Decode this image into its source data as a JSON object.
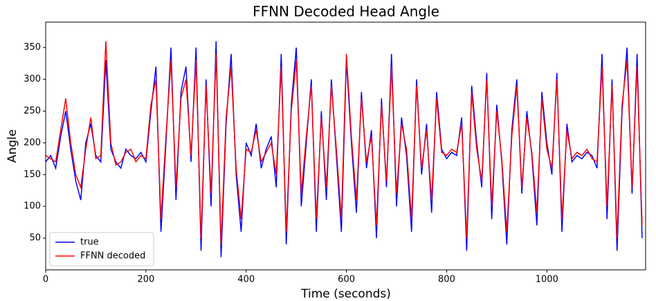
{
  "chart_data": {
    "type": "line",
    "title": "FFNN Decoded Head Angle",
    "x_label": "Time (seconds)",
    "y_label": "Angle",
    "x": [
      0,
      10,
      20,
      30,
      40,
      50,
      60,
      70,
      80,
      90,
      100,
      110,
      120,
      130,
      140,
      150,
      160,
      170,
      180,
      190,
      200,
      210,
      220,
      230,
      240,
      250,
      260,
      270,
      280,
      290,
      300,
      310,
      320,
      330,
      340,
      350,
      360,
      370,
      380,
      390,
      400,
      410,
      420,
      430,
      440,
      450,
      460,
      470,
      480,
      490,
      500,
      510,
      520,
      530,
      540,
      550,
      560,
      570,
      580,
      590,
      600,
      610,
      620,
      630,
      640,
      650,
      660,
      670,
      680,
      690,
      700,
      710,
      720,
      730,
      740,
      750,
      760,
      770,
      780,
      790,
      800,
      810,
      820,
      830,
      840,
      850,
      860,
      870,
      880,
      890,
      900,
      910,
      920,
      930,
      940,
      950,
      960,
      970,
      980,
      990,
      1000,
      1010,
      1020,
      1030,
      1040,
      1050,
      1060,
      1070,
      1080,
      1090,
      1100,
      1110,
      1120,
      1130,
      1140,
      1150,
      1160,
      1170,
      1180,
      1190
    ],
    "series": [
      {
        "name": "true",
        "color": "#0000ff",
        "values": [
          170,
          180,
          160,
          210,
          250,
          190,
          140,
          110,
          200,
          230,
          180,
          170,
          330,
          190,
          170,
          160,
          190,
          180,
          175,
          185,
          170,
          250,
          320,
          60,
          200,
          350,
          110,
          280,
          320,
          170,
          350,
          30,
          300,
          100,
          360,
          20,
          230,
          340,
          150,
          60,
          200,
          180,
          230,
          160,
          190,
          210,
          130,
          340,
          40,
          260,
          350,
          100,
          200,
          300,
          60,
          250,
          110,
          300,
          180,
          60,
          330,
          200,
          90,
          280,
          160,
          220,
          50,
          270,
          130,
          340,
          100,
          240,
          180,
          60,
          300,
          150,
          230,
          90,
          280,
          190,
          175,
          185,
          180,
          240,
          30,
          290,
          200,
          130,
          310,
          80,
          260,
          170,
          40,
          220,
          300,
          120,
          250,
          180,
          70,
          280,
          200,
          150,
          310,
          60,
          230,
          170,
          180,
          175,
          185,
          180,
          160,
          340,
          80,
          300,
          30,
          250,
          350,
          120,
          340,
          50
        ]
      },
      {
        "name": "FFNN decoded",
        "color": "#ff0000",
        "values": [
          180,
          175,
          170,
          220,
          270,
          200,
          150,
          130,
          190,
          240,
          175,
          180,
          360,
          200,
          165,
          170,
          185,
          190,
          170,
          180,
          175,
          260,
          300,
          80,
          210,
          330,
          130,
          270,
          300,
          180,
          330,
          50,
          290,
          120,
          340,
          40,
          240,
          320,
          160,
          80,
          190,
          185,
          220,
          170,
          185,
          200,
          150,
          320,
          60,
          250,
          330,
          120,
          210,
          290,
          80,
          240,
          130,
          290,
          190,
          80,
          340,
          210,
          110,
          270,
          170,
          210,
          70,
          260,
          140,
          320,
          120,
          230,
          190,
          80,
          290,
          160,
          220,
          110,
          270,
          185,
          180,
          190,
          185,
          230,
          50,
          280,
          190,
          140,
          300,
          100,
          250,
          175,
          60,
          210,
          290,
          130,
          240,
          185,
          90,
          270,
          190,
          160,
          300,
          80,
          220,
          175,
          185,
          180,
          190,
          175,
          170,
          320,
          100,
          290,
          50,
          260,
          330,
          130,
          320,
          70
        ]
      }
    ],
    "xlim": [
      0,
      1197
    ],
    "ylim": [
      0,
      390
    ],
    "xticks": [
      0,
      200,
      400,
      600,
      800,
      1000
    ],
    "yticks": [
      50,
      100,
      150,
      200,
      250,
      300,
      350
    ],
    "legend": "lower left"
  }
}
